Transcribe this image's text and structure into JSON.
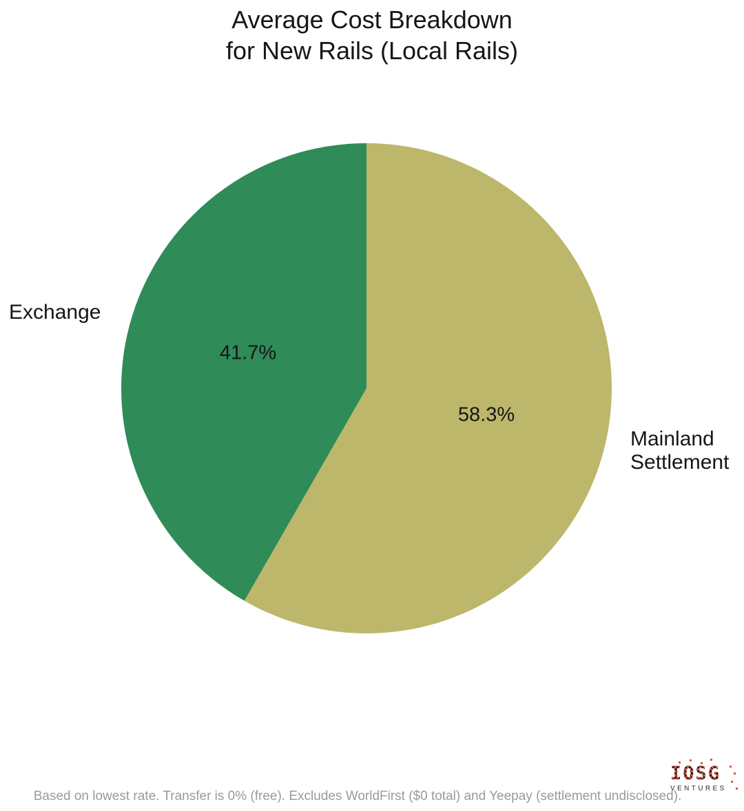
{
  "title": "Average Cost Breakdown\nfor New Rails (Local Rails)",
  "chart_data": {
    "type": "pie",
    "title": "Average Cost Breakdown for New Rails (Local Rails)",
    "labels": [
      "Mainland Settlement",
      "Exchange"
    ],
    "values": [
      58.3,
      41.7
    ],
    "value_labels": [
      "58.3%",
      "41.7%"
    ],
    "colors": [
      "#bcb76a",
      "#2f8b57"
    ],
    "start_angle_deg": 0,
    "direction": "clockwise",
    "label_position": "outside",
    "value_label_position": "inside",
    "legend": false
  },
  "footer": {
    "note": "Based on lowest rate. Transfer is 0% (free). Excludes WorldFirst ($0 total) and Yeepay (settlement undisclosed)."
  },
  "logo": {
    "wordmark": "IOSG",
    "subtext": "VENTURES",
    "accent_color": "#e8513b"
  }
}
